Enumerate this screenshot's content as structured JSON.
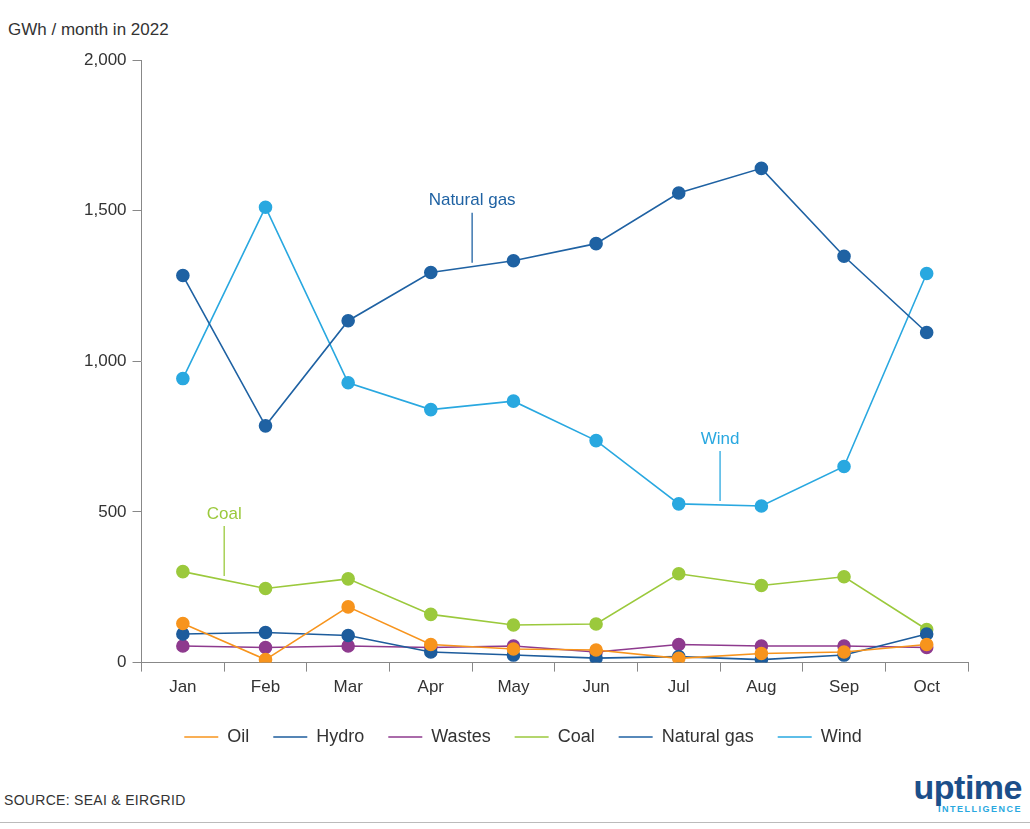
{
  "chart_data": {
    "type": "line",
    "y_label": "GWh / month in 2022",
    "categories": [
      "Jan",
      "Feb",
      "Mar",
      "Apr",
      "May",
      "Jun",
      "Jul",
      "Aug",
      "Sep",
      "Oct"
    ],
    "series": [
      {
        "name": "Oil",
        "color": "#f7941d",
        "marker": "circle",
        "line_style": "solid",
        "values": [
          130,
          10,
          185,
          60,
          45,
          42,
          14,
          30,
          35,
          60
        ]
      },
      {
        "name": "Hydro",
        "color": "#1d5c9c",
        "marker": "circle",
        "line_style": "solid",
        "values": [
          95,
          100,
          90,
          35,
          25,
          15,
          20,
          10,
          25,
          95
        ]
      },
      {
        "name": "Wastes",
        "color": "#8e3a8e",
        "marker": "circle",
        "line_style": "solid",
        "values": [
          55,
          50,
          55,
          50,
          55,
          35,
          60,
          55,
          55,
          50
        ]
      },
      {
        "name": "Coal",
        "color": "#9bc93c",
        "marker": "circle",
        "line_style": "solid",
        "values": [
          302,
          246,
          278,
          160,
          125,
          128,
          295,
          256,
          285,
          110
        ]
      },
      {
        "name": "Natural gas",
        "color": "#1f62a3",
        "marker": "circle",
        "line_style": "solid",
        "values": [
          1285,
          786,
          1135,
          1295,
          1334,
          1391,
          1559,
          1641,
          1349,
          1096
        ]
      },
      {
        "name": "Wind",
        "color": "#29a8e0",
        "marker": "circle",
        "line_style": "solid",
        "values": [
          943,
          1512,
          929,
          840,
          868,
          737,
          527,
          520,
          651,
          1292
        ]
      }
    ],
    "ylim": [
      0,
      2000
    ],
    "yticks": [
      0,
      500,
      {
        "value": 1000,
        "label": "1,000"
      },
      {
        "value": 1500,
        "label": "1,500"
      },
      {
        "value": 2000,
        "label": "2,000"
      }
    ],
    "grid": false,
    "legend": "bottom",
    "annotations": [
      {
        "text": "Natural gas",
        "series": "Natural gas"
      },
      {
        "text": "Wind",
        "series": "Wind"
      },
      {
        "text": "Coal",
        "series": "Coal"
      }
    ],
    "source": "SOURCE: SEAI & EIRGRID",
    "logo": [
      "uptime",
      "INTELLIGENCE"
    ]
  }
}
